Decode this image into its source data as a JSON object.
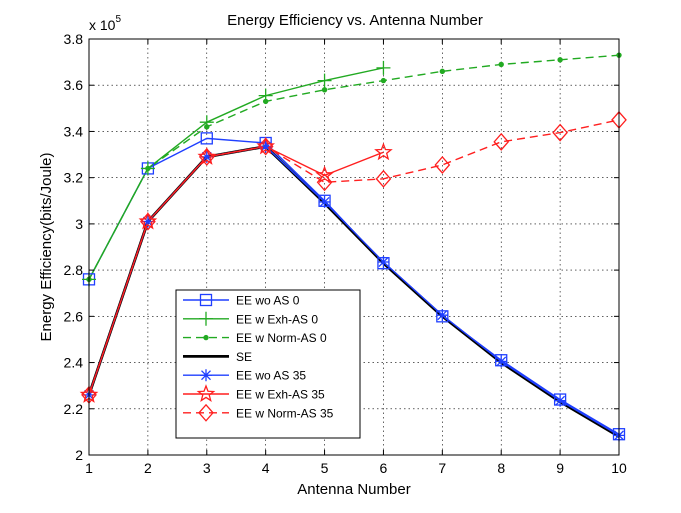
{
  "chart_data": {
    "type": "line",
    "title": "Energy Efficiency vs. Antenna Number",
    "xlabel": "Antenna Number",
    "ylabel": "Energy Efficiency(bits/Joule)",
    "y_multiplier_base": "x 10",
    "y_multiplier_exp": "5",
    "xlim": [
      1,
      10
    ],
    "ylim": [
      2.0,
      3.8
    ],
    "xticks": [
      1,
      2,
      3,
      4,
      5,
      6,
      7,
      8,
      9,
      10
    ],
    "yticks": [
      2.0,
      2.2,
      2.4,
      2.6,
      2.8,
      3.0,
      3.2,
      3.4,
      3.6,
      3.8
    ],
    "ytick_labels": [
      "2",
      "2.2",
      "2.4",
      "2.6",
      "2.8",
      "3",
      "3.2",
      "3.4",
      "3.6",
      "3.8"
    ],
    "grid": true,
    "legend_position": "bottom-left",
    "series": [
      {
        "name": "EE wo AS 0",
        "color": "#1f3fff",
        "dash": "solid",
        "marker": "square",
        "x": [
          1,
          2,
          3,
          4,
          5,
          6,
          7,
          8,
          9,
          10
        ],
        "y": [
          2.76,
          3.24,
          3.37,
          3.35,
          3.1,
          2.83,
          2.6,
          2.41,
          2.24,
          2.09
        ]
      },
      {
        "name": "EE w Exh-AS 0",
        "color": "#22aa22",
        "dash": "solid",
        "marker": "plus",
        "x": [
          1,
          2,
          3,
          4,
          5,
          6
        ],
        "y": [
          2.76,
          3.24,
          3.44,
          3.555,
          3.62,
          3.675
        ]
      },
      {
        "name": "EE w Norm-AS 0",
        "color": "#22aa22",
        "dash": "dashed",
        "marker": "dot",
        "x": [
          1,
          2,
          3,
          4,
          5,
          6,
          7,
          8,
          9,
          10
        ],
        "y": [
          2.76,
          3.24,
          3.42,
          3.53,
          3.58,
          3.62,
          3.66,
          3.69,
          3.71,
          3.73
        ]
      },
      {
        "name": "SE",
        "color": "#000000",
        "dash": "solid",
        "marker": "none",
        "x": [
          1,
          2,
          3,
          4,
          5,
          6,
          7,
          8,
          9,
          10
        ],
        "y": [
          2.26,
          3.01,
          3.29,
          3.335,
          3.09,
          2.83,
          2.6,
          2.4,
          2.23,
          2.08
        ]
      },
      {
        "name": "EE wo AS 35",
        "color": "#1f3fff",
        "dash": "solid",
        "marker": "asterisk",
        "x": [
          1,
          2,
          3,
          4,
          5,
          6,
          7,
          8,
          9,
          10
        ],
        "y": [
          2.26,
          3.01,
          3.29,
          3.335,
          3.095,
          2.835,
          2.605,
          2.405,
          2.235,
          2.085
        ]
      },
      {
        "name": "EE w Exh-AS 35",
        "color": "#ff1f1f",
        "dash": "solid",
        "marker": "star",
        "x": [
          1,
          2,
          3,
          4,
          5,
          6
        ],
        "y": [
          2.26,
          3.01,
          3.29,
          3.335,
          3.21,
          3.31
        ]
      },
      {
        "name": "EE w Norm-AS 35",
        "color": "#ff1f1f",
        "dash": "dashed",
        "marker": "diamond",
        "x": [
          1,
          2,
          3,
          4,
          5,
          6,
          7,
          8,
          9,
          10
        ],
        "y": [
          2.26,
          3.01,
          3.29,
          3.335,
          3.18,
          3.195,
          3.255,
          3.355,
          3.395,
          3.45
        ]
      }
    ]
  }
}
